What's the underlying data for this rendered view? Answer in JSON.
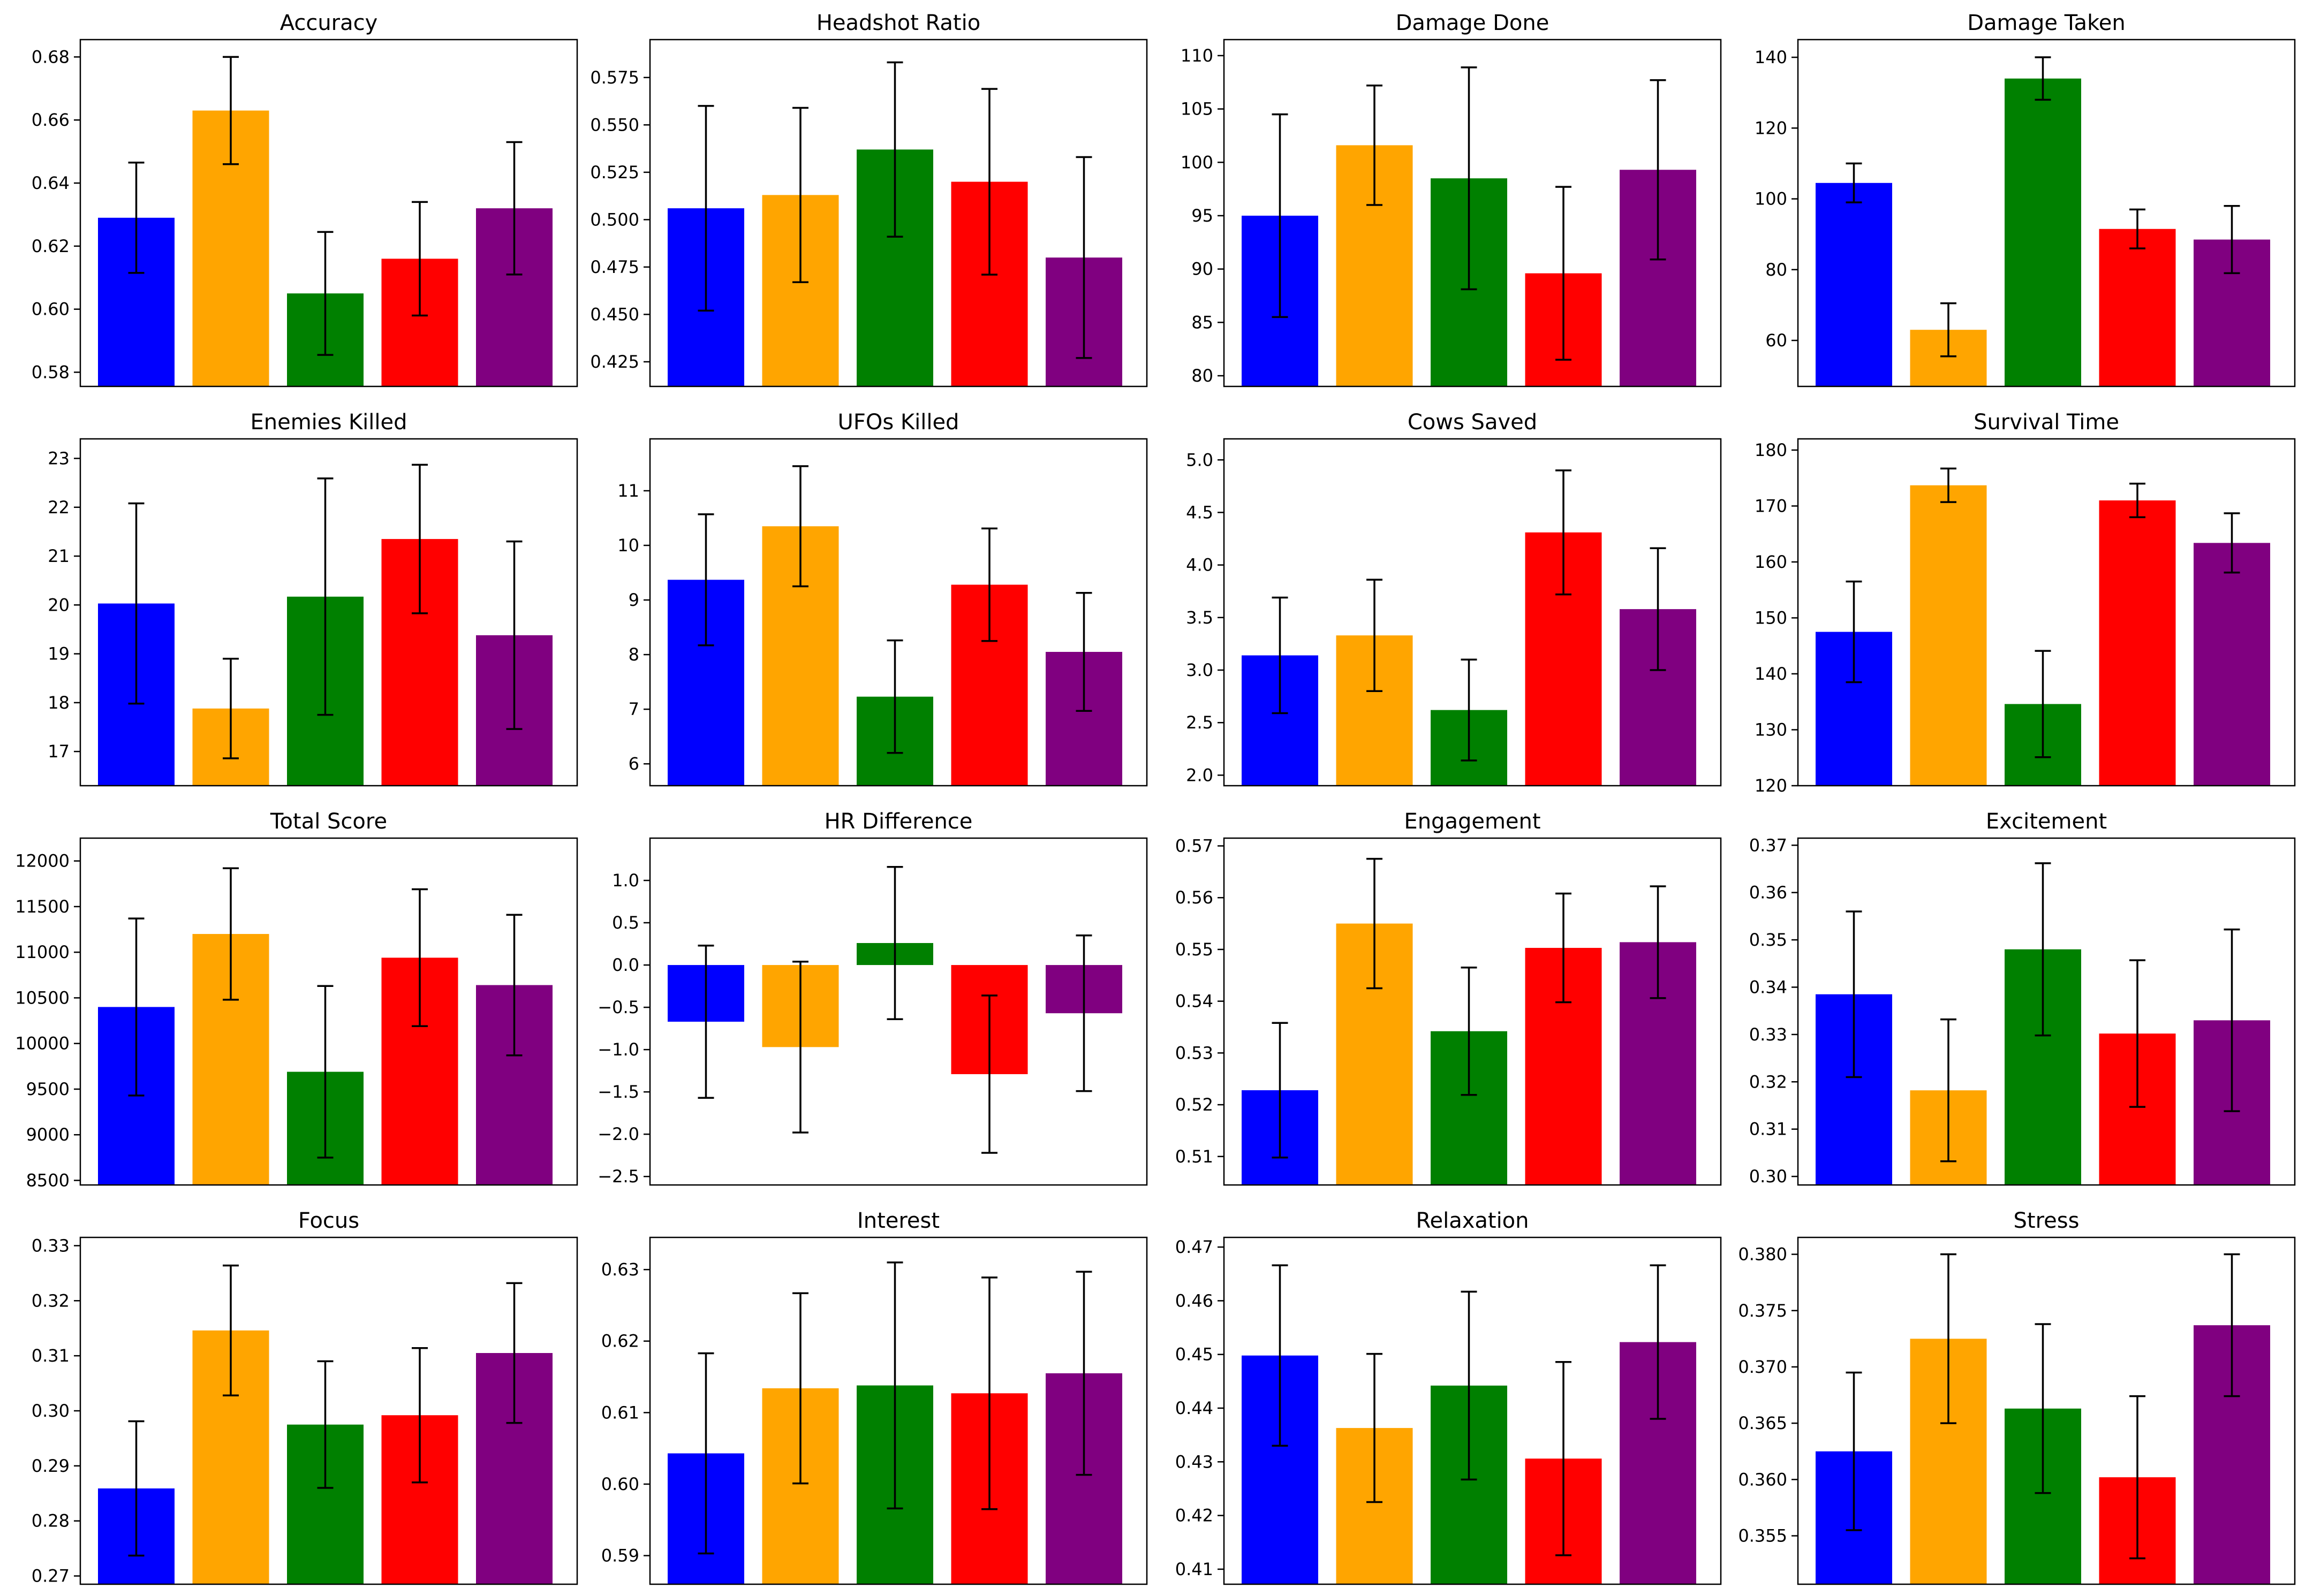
{
  "figure": {
    "colors": [
      "#0000ff",
      "#ffa500",
      "#008000",
      "#ff0000",
      "#800080"
    ]
  },
  "chart_data": [
    {
      "type": "bar",
      "title": "Accuracy",
      "values": [
        0.629,
        0.663,
        0.605,
        0.616,
        0.632
      ],
      "errors": [
        0.0175,
        0.017,
        0.0195,
        0.018,
        0.021
      ],
      "ylim": [
        0.5755,
        0.6855
      ],
      "yticks": [
        0.58,
        0.6,
        0.62,
        0.64,
        0.66,
        0.68
      ],
      "ytick_labels": [
        "0.58",
        "0.60",
        "0.62",
        "0.64",
        "0.66",
        "0.68"
      ]
    },
    {
      "type": "bar",
      "title": "Headshot Ratio",
      "values": [
        0.506,
        0.513,
        0.537,
        0.52,
        0.48
      ],
      "errors": [
        0.054,
        0.046,
        0.046,
        0.049,
        0.053
      ],
      "ylim": [
        0.412,
        0.595
      ],
      "yticks": [
        0.425,
        0.45,
        0.475,
        0.5,
        0.525,
        0.55,
        0.575
      ],
      "ytick_labels": [
        "0.425",
        "0.450",
        "0.475",
        "0.500",
        "0.525",
        "0.550",
        "0.575"
      ]
    },
    {
      "type": "bar",
      "title": "Damage Done",
      "values": [
        95.0,
        101.6,
        98.5,
        89.6,
        99.3
      ],
      "errors": [
        9.5,
        5.6,
        10.4,
        8.1,
        8.4
      ],
      "ylim": [
        79,
        111.5
      ],
      "yticks": [
        80,
        85,
        90,
        95,
        100,
        105,
        110
      ],
      "ytick_labels": [
        "80",
        "85",
        "90",
        "95",
        "100",
        "105",
        "110"
      ]
    },
    {
      "type": "bar",
      "title": "Damage Taken",
      "values": [
        104.5,
        63.0,
        134.0,
        91.5,
        88.5
      ],
      "errors": [
        5.5,
        7.5,
        6.0,
        5.5,
        9.5
      ],
      "ylim": [
        47,
        145
      ],
      "yticks": [
        60,
        80,
        100,
        120,
        140
      ],
      "ytick_labels": [
        "60",
        "80",
        "100",
        "120",
        "140"
      ]
    },
    {
      "type": "bar",
      "title": "Enemies Killed",
      "values": [
        20.03,
        17.88,
        20.17,
        21.35,
        19.38
      ],
      "errors": [
        2.05,
        1.02,
        2.42,
        1.52,
        1.92
      ],
      "ylim": [
        16.3,
        23.4
      ],
      "yticks": [
        17,
        18,
        19,
        20,
        21,
        22,
        23
      ],
      "ytick_labels": [
        "17",
        "18",
        "19",
        "20",
        "21",
        "22",
        "23"
      ]
    },
    {
      "type": "bar",
      "title": "UFOs Killed",
      "values": [
        9.37,
        10.35,
        7.23,
        9.28,
        8.05
      ],
      "errors": [
        1.2,
        1.1,
        1.03,
        1.03,
        1.08
      ],
      "ylim": [
        5.6,
        11.95
      ],
      "yticks": [
        6,
        7,
        8,
        9,
        10,
        11
      ],
      "ytick_labels": [
        "6",
        "7",
        "8",
        "9",
        "10",
        "11"
      ]
    },
    {
      "type": "bar",
      "title": "Cows Saved",
      "values": [
        3.14,
        3.33,
        2.62,
        4.31,
        3.58
      ],
      "errors": [
        0.55,
        0.53,
        0.48,
        0.59,
        0.58
      ],
      "ylim": [
        1.9,
        5.2
      ],
      "yticks": [
        2.0,
        2.5,
        3.0,
        3.5,
        4.0,
        4.5,
        5.0
      ],
      "ytick_labels": [
        "2.0",
        "2.5",
        "3.0",
        "3.5",
        "4.0",
        "4.5",
        "5.0"
      ]
    },
    {
      "type": "bar",
      "title": "Survival Time",
      "values": [
        147.5,
        173.7,
        134.6,
        171.0,
        163.4
      ],
      "errors": [
        9.0,
        3.0,
        9.5,
        3.0,
        5.3
      ],
      "ylim": [
        120,
        182
      ],
      "yticks": [
        120,
        130,
        140,
        150,
        160,
        170,
        180
      ],
      "ytick_labels": [
        "120",
        "130",
        "140",
        "150",
        "160",
        "170",
        "180"
      ]
    },
    {
      "type": "bar",
      "title": "Total Score",
      "values": [
        10400,
        11200,
        9690,
        10940,
        10640
      ],
      "errors": [
        970,
        720,
        940,
        750,
        770
      ],
      "ylim": [
        8450,
        12250
      ],
      "yticks": [
        8500,
        9000,
        9500,
        10000,
        10500,
        11000,
        11500,
        12000
      ],
      "ytick_labels": [
        "8500",
        "9000",
        "9500",
        "10000",
        "10500",
        "11000",
        "11500",
        "12000"
      ]
    },
    {
      "type": "bar",
      "title": "HR Difference",
      "values": [
        -0.67,
        -0.97,
        0.26,
        -1.29,
        -0.57
      ],
      "errors": [
        0.9,
        1.01,
        0.9,
        0.93,
        0.92
      ],
      "ylim": [
        -2.6,
        1.5
      ],
      "yticks": [
        -2.5,
        -2.0,
        -1.5,
        -1.0,
        -0.5,
        0.0,
        0.5,
        1.0
      ],
      "ytick_labels": [
        "−2.5",
        "−2.0",
        "−1.5",
        "−1.0",
        "−0.5",
        "0.0",
        "0.5",
        "1.0"
      ]
    },
    {
      "type": "bar",
      "title": "Engagement",
      "values": [
        0.5228,
        0.555,
        0.5342,
        0.5503,
        0.5514
      ],
      "errors": [
        0.013,
        0.0125,
        0.0123,
        0.0105,
        0.0108
      ],
      "ylim": [
        0.5045,
        0.5715
      ],
      "yticks": [
        0.51,
        0.52,
        0.53,
        0.54,
        0.55,
        0.56,
        0.57
      ],
      "ytick_labels": [
        "0.51",
        "0.52",
        "0.53",
        "0.54",
        "0.55",
        "0.56",
        "0.57"
      ]
    },
    {
      "type": "bar",
      "title": "Excitement",
      "values": [
        0.3385,
        0.3182,
        0.348,
        0.3302,
        0.333
      ],
      "errors": [
        0.0175,
        0.015,
        0.0182,
        0.0155,
        0.0192
      ],
      "ylim": [
        0.2982,
        0.3715
      ],
      "yticks": [
        0.3,
        0.31,
        0.32,
        0.33,
        0.34,
        0.35,
        0.36,
        0.37
      ],
      "ytick_labels": [
        "0.30",
        "0.31",
        "0.32",
        "0.33",
        "0.34",
        "0.35",
        "0.36",
        "0.37"
      ]
    },
    {
      "type": "bar",
      "title": "Focus",
      "values": [
        0.2859,
        0.3146,
        0.2975,
        0.2992,
        0.3105
      ],
      "errors": [
        0.0122,
        0.0118,
        0.0115,
        0.0122,
        0.0127
      ],
      "ylim": [
        0.2685,
        0.3315
      ],
      "yticks": [
        0.27,
        0.28,
        0.29,
        0.3,
        0.31,
        0.32,
        0.33
      ],
      "ytick_labels": [
        "0.27",
        "0.28",
        "0.29",
        "0.30",
        "0.31",
        "0.32",
        "0.33"
      ]
    },
    {
      "type": "bar",
      "title": "Interest",
      "values": [
        0.6043,
        0.6134,
        0.6138,
        0.6127,
        0.6155
      ],
      "errors": [
        0.014,
        0.0133,
        0.0172,
        0.0162,
        0.0142
      ],
      "ylim": [
        0.586,
        0.6345
      ],
      "yticks": [
        0.59,
        0.6,
        0.61,
        0.62,
        0.63
      ],
      "ytick_labels": [
        "0.59",
        "0.60",
        "0.61",
        "0.62",
        "0.63"
      ]
    },
    {
      "type": "bar",
      "title": "Relaxation",
      "values": [
        0.4498,
        0.4363,
        0.4442,
        0.4306,
        0.4523
      ],
      "errors": [
        0.0168,
        0.0138,
        0.0175,
        0.018,
        0.0143
      ],
      "ylim": [
        0.4072,
        0.4718
      ],
      "yticks": [
        0.41,
        0.42,
        0.43,
        0.44,
        0.45,
        0.46,
        0.47
      ],
      "ytick_labels": [
        "0.41",
        "0.42",
        "0.43",
        "0.44",
        "0.45",
        "0.46",
        "0.47"
      ]
    },
    {
      "type": "bar",
      "title": "Stress",
      "values": [
        0.3625,
        0.3725,
        0.3663,
        0.3602,
        0.3737
      ],
      "errors": [
        0.007,
        0.0075,
        0.0075,
        0.0072,
        0.0063
      ],
      "ylim": [
        0.3507,
        0.3815
      ],
      "yticks": [
        0.355,
        0.36,
        0.365,
        0.37,
        0.375,
        0.38
      ],
      "ytick_labels": [
        "0.355",
        "0.360",
        "0.365",
        "0.370",
        "0.375",
        "0.380"
      ]
    }
  ]
}
